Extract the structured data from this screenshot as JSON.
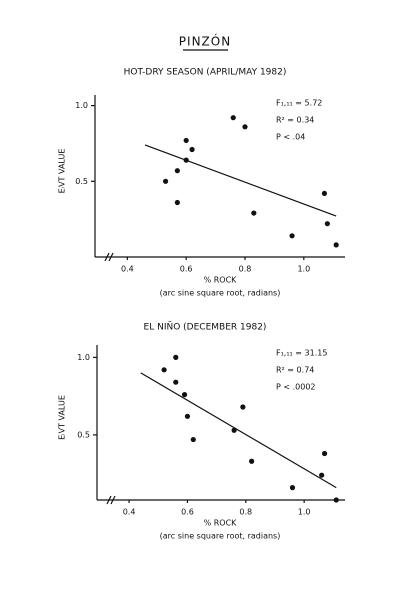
{
  "title": "PINZÓN",
  "chart_data": [
    {
      "type": "scatter",
      "title": "HOT-DRY SEASON  (APRIL/MAY 1982)",
      "x_label": "% ROCK",
      "x_sublabel": "(arc sine square root, radians)",
      "y_label": "EᵢVT VALUE",
      "annotations": [
        "F₁,₁₁ = 5.72",
        "R² = 0.34",
        "P <  .04"
      ],
      "x": [
        0.76,
        0.8,
        0.6,
        0.62,
        0.6,
        0.57,
        0.53,
        0.57,
        0.83,
        0.96,
        1.07,
        1.08,
        1.11
      ],
      "values": [
        0.92,
        0.86,
        0.77,
        0.71,
        0.64,
        0.57,
        0.5,
        0.36,
        0.29,
        0.14,
        0.42,
        0.22,
        0.08
      ],
      "trendline": {
        "x": [
          0.46,
          1.11
        ],
        "y": [
          0.74,
          0.27
        ]
      },
      "color": "#111111",
      "xlim": [
        0.29,
        1.14
      ],
      "ylim": [
        0,
        1.07
      ],
      "xticks": [
        0.4,
        0.6,
        0.8,
        {
          "value": 1,
          "label": "1.0"
        }
      ],
      "yticks": [
        0.5,
        {
          "value": 1,
          "label": "1.0"
        }
      ]
    },
    {
      "type": "scatter",
      "title": "EL NIÑO  (DECEMBER 1982)",
      "x_label": "% ROCK",
      "x_sublabel": "(arc sine square root, radians)",
      "y_label": "EᵢVT VALUE",
      "annotations": [
        "F₁,₁₁ = 31.15",
        "R² = 0.74",
        "P <  .0002"
      ],
      "x": [
        0.52,
        0.56,
        0.56,
        0.59,
        0.6,
        0.62,
        0.76,
        0.79,
        0.82,
        0.96,
        1.07,
        1.06,
        1.11
      ],
      "values": [
        0.92,
        1.0,
        0.84,
        0.76,
        0.62,
        0.47,
        0.53,
        0.68,
        0.33,
        0.16,
        0.38,
        0.24,
        0.08
      ],
      "trendline": {
        "x": [
          0.44,
          1.11
        ],
        "y": [
          0.9,
          0.16
        ]
      },
      "color": "#111111",
      "xlim": [
        0.29,
        1.14
      ],
      "ylim": [
        0.08,
        1.08
      ],
      "xticks": [
        0.4,
        0.6,
        0.8,
        {
          "value": 1,
          "label": "1.0"
        }
      ],
      "yticks": [
        0.5,
        {
          "value": 1,
          "label": "1.0"
        }
      ]
    }
  ]
}
